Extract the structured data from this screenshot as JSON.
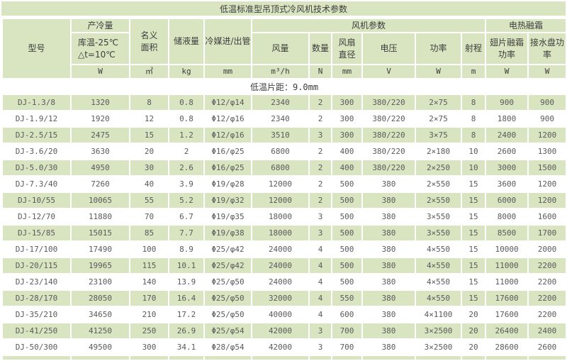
{
  "title": "低温标准型吊顶式冷风机技术参数",
  "colors": {
    "green": "#d9e5c1",
    "white": "#ffffff",
    "header_text": "#3c3c3c",
    "cell_text": "#5a5a5a"
  },
  "header": {
    "model": "型号",
    "cooling_capacity": "产冷量",
    "cooling_condition_line1": "库温-25℃",
    "cooling_condition_line2": "△t=10℃",
    "nominal_area_line1": "名义",
    "nominal_area_line2": "面积",
    "liquid_volume": "储液量",
    "refrigerant_pipe": "冷媒进/出管",
    "fan_group": "风机参数",
    "air_volume": "风量",
    "fan_qty": "数量",
    "fan_dia_line1": "风扇",
    "fan_dia_line2": "直径",
    "voltage": "电压",
    "power": "功率",
    "throw": "射程",
    "defrost_group": "电热融霜",
    "fin_defrost_line1": "翅片融霜",
    "fin_defrost_line2": "功率",
    "drain_pan_line1": "接水盘功",
    "drain_pan_line2": "率"
  },
  "units": [
    "W",
    "㎡",
    "kg",
    "mm",
    "m³/h",
    "N",
    "mm",
    "V",
    "W",
    "m",
    "W",
    "W"
  ],
  "fin_spacing_note": "低温片距：9.0mm",
  "table": {
    "rows": [
      [
        "DJ-1.3/8",
        "1320",
        "8",
        "0.8",
        "Φ12/φ14",
        "2340",
        "2",
        "300",
        "380/220",
        "2×75",
        "8",
        "900",
        "900"
      ],
      [
        "DJ-1.9/12",
        "1920",
        "12",
        "0.8",
        "Φ12/φ16",
        "2340",
        "2",
        "300",
        "380/220",
        "2×75",
        "8",
        "1800",
        "900"
      ],
      [
        "DJ-2.5/15",
        "2475",
        "15",
        "1.2",
        "Φ12/φ16",
        "3510",
        "3",
        "300",
        "380/220",
        "3×75",
        "8",
        "2400",
        "1200"
      ],
      [
        "DJ-3.6/20",
        "3630",
        "20",
        "2",
        "Φ16/φ25",
        "6800",
        "2",
        "400",
        "380/220",
        "2×180",
        "10",
        "2600",
        "1300"
      ],
      [
        "DJ-5.0/30",
        "4950",
        "30",
        "2.6",
        "Φ16/φ25",
        "6800",
        "2",
        "400",
        "380/220",
        "2×250",
        "10",
        "3000",
        "1500"
      ],
      [
        "DJ-7.3/40",
        "7260",
        "40",
        "3.9",
        "Φ19/φ28",
        "12000",
        "2",
        "500",
        "380",
        "2×550",
        "15",
        "3600",
        "1200"
      ],
      [
        "DJ-10/55",
        "10065",
        "55",
        "5.2",
        "Φ19/φ32",
        "12000",
        "2",
        "500",
        "380",
        "2×550",
        "15",
        "6000",
        "1200"
      ],
      [
        "DJ-12/70",
        "11880",
        "70",
        "6.7",
        "Φ19/φ35",
        "18000",
        "3",
        "500",
        "380",
        "3×550",
        "15",
        "8000",
        "1600"
      ],
      [
        "DJ-15/85",
        "15015",
        "85",
        "7.7",
        "Φ19/φ38",
        "18000",
        "3",
        "500",
        "380",
        "3×550",
        "15",
        "8500",
        "1700"
      ],
      [
        "DJ-17/100",
        "17490",
        "100",
        "8.9",
        "Φ25/φ42",
        "24000",
        "4",
        "500",
        "380",
        "4×550",
        "15",
        "10000",
        "2000"
      ],
      [
        "DJ-20/115",
        "19965",
        "115",
        "10.1",
        "Φ25/φ42",
        "24000",
        "4",
        "500",
        "380",
        "4×550",
        "15",
        "11000",
        "2200"
      ],
      [
        "DJ-23/140",
        "23100",
        "140",
        "13.9",
        "Φ25/φ50",
        "24000",
        "4",
        "500",
        "380",
        "4×550",
        "15",
        "11000",
        "2200"
      ],
      [
        "DJ-28/170",
        "28050",
        "170",
        "16.4",
        "Φ25/φ50",
        "32000",
        "4",
        "550",
        "380",
        "4×550",
        "15",
        "17600",
        "2200"
      ],
      [
        "DJ-35/210",
        "34650",
        "210",
        "17.2",
        "Φ25/φ50",
        "40000",
        "4",
        "600",
        "380",
        "4×1100",
        "20",
        "17600",
        "2200"
      ],
      [
        "DJ-41/250",
        "41250",
        "250",
        "26.9",
        "Φ25/φ54",
        "42000",
        "3",
        "700",
        "380",
        "3×2500",
        "20",
        "26400",
        "2400"
      ],
      [
        "DJ-50/300",
        "49500",
        "300",
        "34.1",
        "Φ28/φ54",
        "42000",
        "3",
        "700",
        "380",
        "3×2500",
        "20",
        "28600",
        "2600"
      ]
    ]
  }
}
